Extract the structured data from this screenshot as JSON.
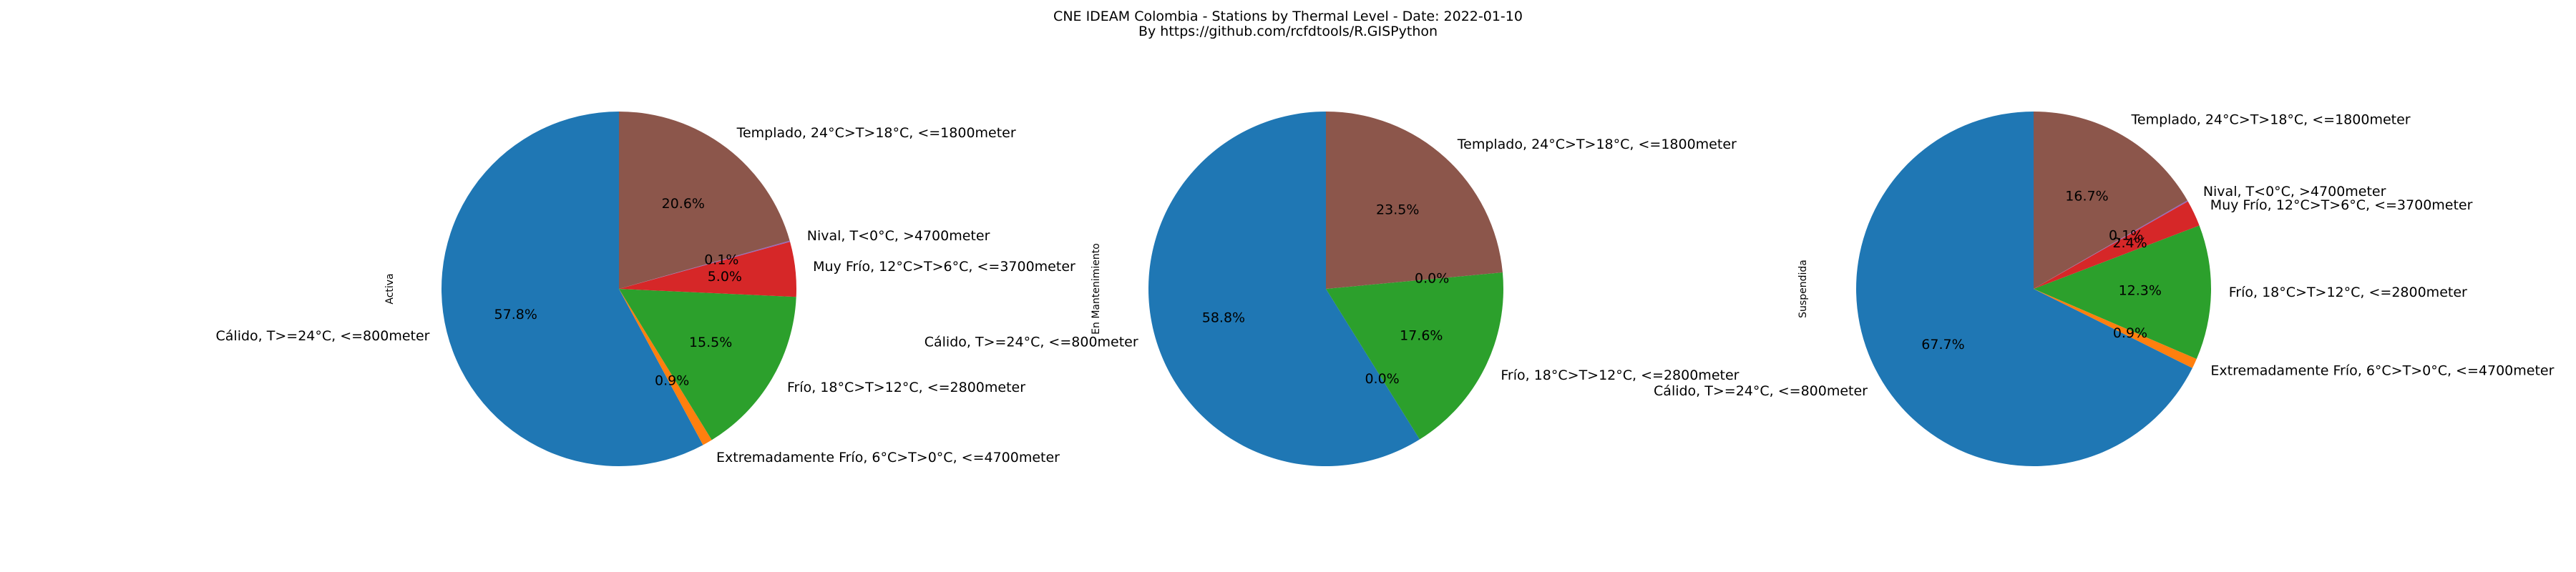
{
  "figure": {
    "title_line1": "CNE IDEAM Colombia -  Stations by Thermal Level - Date: 2022-01-10",
    "title_line2": "By https://github.com/rcfdtools/R.GISPython"
  },
  "colors": {
    "calido": "#1f77b4",
    "extremadamente_frio": "#ff7f0e",
    "frio": "#2ca02c",
    "muy_frio": "#d62728",
    "nival": "#9467bd",
    "templado": "#8c564b"
  },
  "chart_data": [
    {
      "type": "pie",
      "ylabel": "Activa",
      "start_angle": 90,
      "counterclockwise": true,
      "slices": [
        {
          "label": "Cálido, T>=24°C, <=800meter",
          "pct": 57.8,
          "pct_text": "57.8%",
          "color": "#1f77b4"
        },
        {
          "label": "Extremadamente Frío, 6°C>T>0°C, <=4700meter",
          "pct": 0.9,
          "pct_text": "0.9%",
          "color": "#ff7f0e"
        },
        {
          "label": "Frío, 18°C>T>12°C, <=2800meter",
          "pct": 15.5,
          "pct_text": "15.5%",
          "color": "#2ca02c"
        },
        {
          "label": "Muy Frío, 12°C>T>6°C, <=3700meter",
          "pct": 5.0,
          "pct_text": "5.0%",
          "color": "#d62728"
        },
        {
          "label": "Nival, T<0°C, >4700meter",
          "pct": 0.1,
          "pct_text": "0.1%",
          "color": "#9467bd"
        },
        {
          "label": "Templado, 24°C>T>18°C, <=1800meter",
          "pct": 20.6,
          "pct_text": "20.6%",
          "color": "#8c564b"
        }
      ]
    },
    {
      "type": "pie",
      "ylabel": "En Mantenimiento",
      "start_angle": 90,
      "counterclockwise": true,
      "slices": [
        {
          "label": "Cálido, T>=24°C, <=800meter",
          "pct": 58.8,
          "pct_text": "58.8%",
          "color": "#1f77b4"
        },
        {
          "label": "",
          "pct": 0.0,
          "pct_text": "0.0%",
          "color": "#ff7f0e"
        },
        {
          "label": "Frío, 18°C>T>12°C, <=2800meter",
          "pct": 17.6,
          "pct_text": "17.6%",
          "color": "#2ca02c"
        },
        {
          "label": "",
          "pct": 0.0,
          "pct_text": "0.0%",
          "color": "#d62728"
        },
        {
          "label": "Templado, 24°C>T>18°C, <=1800meter",
          "pct": 23.5,
          "pct_text": "23.5%",
          "color": "#8c564b"
        }
      ]
    },
    {
      "type": "pie",
      "ylabel": "Suspendida",
      "start_angle": 90,
      "counterclockwise": true,
      "slices": [
        {
          "label": "Cálido, T>=24°C, <=800meter",
          "pct": 67.7,
          "pct_text": "67.7%",
          "color": "#1f77b4"
        },
        {
          "label": "Extremadamente Frío, 6°C>T>0°C, <=4700meter",
          "pct": 0.9,
          "pct_text": "0.9%",
          "color": "#ff7f0e"
        },
        {
          "label": "Frío, 18°C>T>12°C, <=2800meter",
          "pct": 12.3,
          "pct_text": "12.3%",
          "color": "#2ca02c"
        },
        {
          "label": "Muy Frío, 12°C>T>6°C, <=3700meter",
          "pct": 2.4,
          "pct_text": "2.4%",
          "color": "#d62728"
        },
        {
          "label": "Nival, T<0°C, >4700meter",
          "pct": 0.1,
          "pct_text": "0.1%",
          "color": "#9467bd"
        },
        {
          "label": "Templado, 24°C>T>18°C, <=1800meter",
          "pct": 16.7,
          "pct_text": "16.7%",
          "color": "#8c564b"
        }
      ]
    }
  ]
}
